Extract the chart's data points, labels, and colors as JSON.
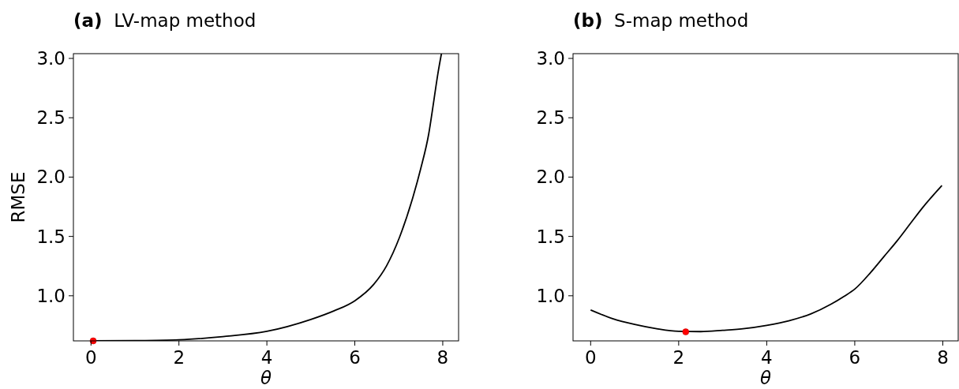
{
  "chart_data": [
    {
      "type": "line",
      "title": "(a) LV-map method",
      "xlabel": "θ",
      "ylabel": "RMSE",
      "xlim": [
        -0.4,
        8.36
      ],
      "ylim": [
        0.62,
        3.04
      ],
      "xticks": [
        0,
        2,
        4,
        6,
        8
      ],
      "yticks": [
        {
          "value": 1,
          "label": "1.0"
        },
        {
          "value": 1.5,
          "label": "1.5"
        },
        {
          "value": 2,
          "label": "2.0"
        },
        {
          "value": 2.5,
          "label": "2.5"
        },
        {
          "value": 3,
          "label": "3.0"
        }
      ],
      "grid": false,
      "series": [
        {
          "color": "#000000",
          "marker": "none",
          "line_style": "solid",
          "x": [
            0,
            1,
            2,
            3,
            4,
            5,
            5.53,
            6,
            6.43,
            6.72,
            7.02,
            7.32,
            7.5,
            7.68,
            7.8,
            7.89,
            7.97
          ],
          "values": [
            0.62,
            0.622,
            0.629,
            0.656,
            0.7,
            0.8,
            0.873,
            0.958,
            1.096,
            1.251,
            1.496,
            1.829,
            2.073,
            2.362,
            2.651,
            2.873,
            3.04
          ]
        },
        {
          "type": "scatter",
          "color": "#ff0000",
          "marker": "circle",
          "x": [
            0.05
          ],
          "values": [
            0.62
          ]
        }
      ]
    },
    {
      "type": "line",
      "title": "(b) S-map method",
      "xlabel": "θ",
      "xlim": [
        -0.4,
        8.35
      ],
      "ylim": [
        0.62,
        3.04
      ],
      "xticks": [
        0,
        2,
        4,
        6,
        8
      ],
      "yticks": [
        {
          "value": 1,
          "label": "1.0"
        },
        {
          "value": 1.5,
          "label": "1.5"
        },
        {
          "value": 2,
          "label": "2.0"
        },
        {
          "value": 2.5,
          "label": "2.5"
        },
        {
          "value": 3,
          "label": "3.0"
        }
      ],
      "grid": false,
      "series": [
        {
          "color": "#000000",
          "marker": "none",
          "line_style": "solid",
          "x": [
            0,
            0.5,
            1,
            1.5,
            2,
            2.5,
            3,
            3.5,
            4,
            4.5,
            5,
            5.46,
            5.76,
            6,
            6.36,
            6.66,
            6.96,
            7.26,
            7.56,
            7.98
          ],
          "values": [
            0.88,
            0.807,
            0.758,
            0.722,
            0.7,
            0.698,
            0.709,
            0.724,
            0.751,
            0.789,
            0.847,
            0.929,
            0.996,
            1.056,
            1.196,
            1.329,
            1.462,
            1.607,
            1.751,
            1.929
          ]
        },
        {
          "type": "scatter",
          "color": "#ff0000",
          "marker": "circle",
          "x": [
            2.16
          ],
          "values": [
            0.696
          ]
        }
      ]
    }
  ]
}
